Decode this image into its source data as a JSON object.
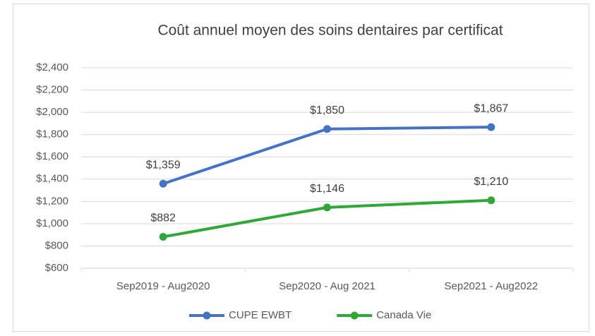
{
  "chart_data": {
    "type": "line",
    "title": "Coût annuel moyen des soins dentaires par certificat",
    "categories": [
      "Sep2019 - Aug2020",
      "Sep2020 - Aug 2021",
      "Sep2021 - Aug2022"
    ],
    "series": [
      {
        "name": "CUPE EWBT",
        "color": "#4472c4",
        "values": [
          1359,
          1850,
          1867
        ],
        "value_labels": [
          "$1,359",
          "$1,850",
          "$1,867"
        ]
      },
      {
        "name": "Canada Vie",
        "color": "#2ea836",
        "values": [
          882,
          1146,
          1210
        ],
        "value_labels": [
          "$882",
          "$1,146",
          "$1,210"
        ]
      }
    ],
    "ylim": [
      600,
      2400
    ],
    "yticks": [
      {
        "value": 600,
        "label": "$600"
      },
      {
        "value": 800,
        "label": "$800"
      },
      {
        "value": 1000,
        "label": "$1,000"
      },
      {
        "value": 1200,
        "label": "$1,200"
      },
      {
        "value": 1400,
        "label": "$1,400"
      },
      {
        "value": 1600,
        "label": "$1,600"
      },
      {
        "value": 1800,
        "label": "$1,800"
      },
      {
        "value": 2000,
        "label": "$2,000"
      },
      {
        "value": 2200,
        "label": "$2,200"
      },
      {
        "value": 2400,
        "label": "$2,400"
      }
    ],
    "grid": true,
    "legend": "bottom"
  }
}
